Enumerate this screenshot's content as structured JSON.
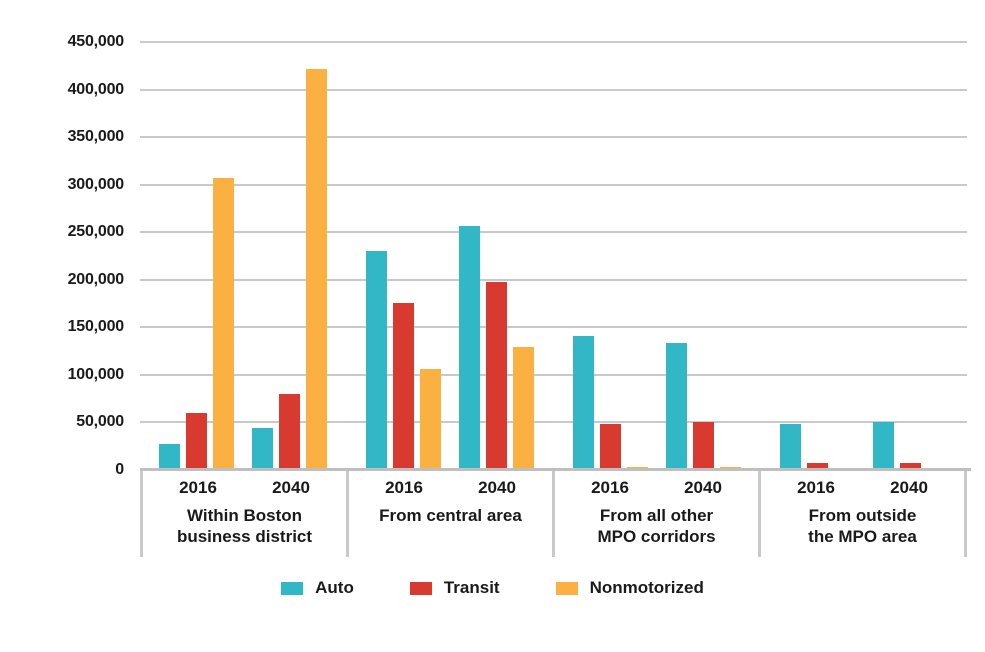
{
  "chart_data": {
    "type": "bar",
    "title": "",
    "xlabel": "",
    "ylabel": "",
    "ylim": [
      0,
      450000
    ],
    "ytick_step": 50000,
    "ytick_labels": [
      "0",
      "50,000",
      "100,000",
      "150,000",
      "200,000",
      "250,000",
      "300,000",
      "350,000",
      "400,000",
      "450,000"
    ],
    "grid": true,
    "legend_position": "bottom-center",
    "series_meta": [
      {
        "key": "auto",
        "label": "Auto",
        "color": "#31B7C5"
      },
      {
        "key": "transit",
        "label": "Transit",
        "color": "#D93A2F"
      },
      {
        "key": "nonmotorized",
        "label": "Nonmotorized",
        "color": "#FBB042"
      }
    ],
    "groups": [
      {
        "label": "Within Boston business district",
        "label_lines": [
          "Within Boston",
          "business district"
        ],
        "clusters": [
          {
            "year": "2016",
            "auto": 27000,
            "transit": 60000,
            "nonmotorized": 307000
          },
          {
            "year": "2040",
            "auto": 44000,
            "transit": 80000,
            "nonmotorized": 422000
          }
        ]
      },
      {
        "label": "From central area",
        "label_lines": [
          "From central area"
        ],
        "clusters": [
          {
            "year": "2016",
            "auto": 230000,
            "transit": 176000,
            "nonmotorized": 106000
          },
          {
            "year": "2040",
            "auto": 257000,
            "transit": 198000,
            "nonmotorized": 129000
          }
        ]
      },
      {
        "label": "From all other MPO corridors",
        "label_lines": [
          "From all other",
          "MPO corridors"
        ],
        "clusters": [
          {
            "year": "2016",
            "auto": 141000,
            "transit": 48000,
            "nonmotorized": 3000
          },
          {
            "year": "2040",
            "auto": 134000,
            "transit": 51000,
            "nonmotorized": 3000
          }
        ]
      },
      {
        "label": "From outside the MPO area",
        "label_lines": [
          "From outside",
          "the MPO area"
        ],
        "clusters": [
          {
            "year": "2016",
            "auto": 48000,
            "transit": 7000,
            "nonmotorized": 0
          },
          {
            "year": "2040",
            "auto": 50000,
            "transit": 7000,
            "nonmotorized": 0
          }
        ]
      }
    ]
  },
  "colors": {
    "background": "#FFFFFF",
    "gridline": "#C9C9C9",
    "axis_line": "#BFBFBF",
    "text": "#1A1A1A"
  }
}
